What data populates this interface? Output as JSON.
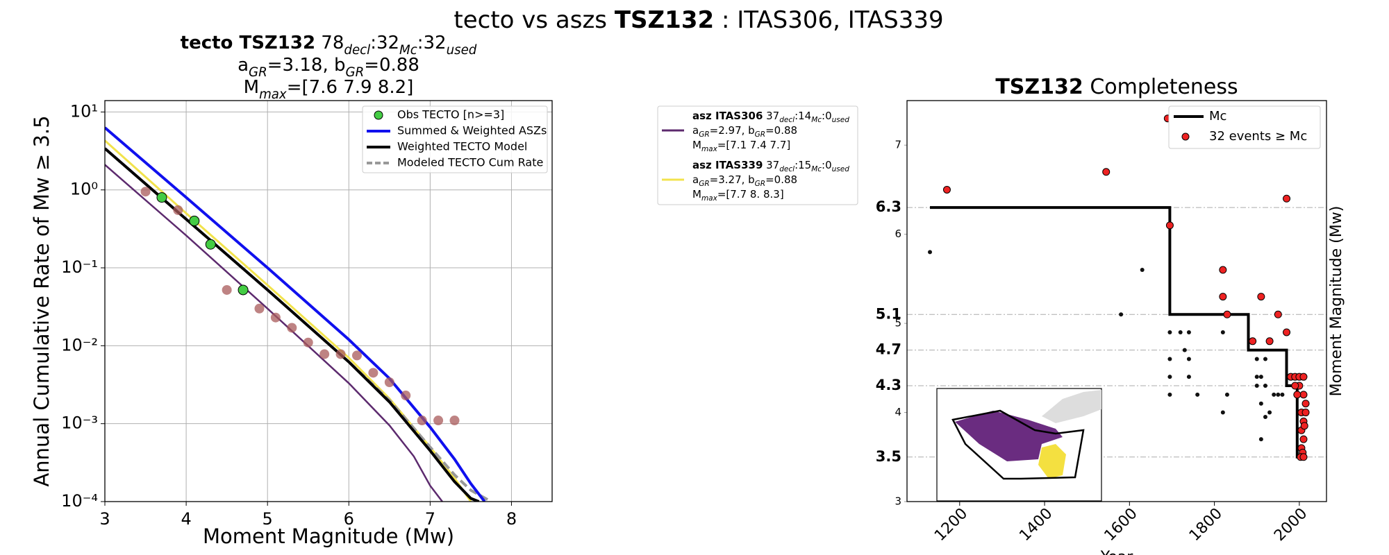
{
  "title": [
    {
      "t": "tecto vs aszs "
    },
    {
      "t": "TSZ132",
      "b": 1
    },
    {
      "t": " : ITAS306, ITAS339"
    }
  ],
  "chart_data": [
    {
      "type": "line",
      "title_lines": [
        [
          {
            "t": "tecto TSZ132",
            "b": 1
          },
          {
            "t": "  78"
          },
          {
            "t": "decl",
            "sub": 1
          },
          {
            "t": ":32"
          },
          {
            "t": "Mc",
            "sub": 1
          },
          {
            "t": ":32"
          },
          {
            "t": "used",
            "sub": 1
          }
        ],
        [
          {
            "t": "a"
          },
          {
            "t": "GR",
            "sub": 1
          },
          {
            "t": "=3.18,  b"
          },
          {
            "t": "GR",
            "sub": 1
          },
          {
            "t": "=0.88"
          }
        ],
        [
          {
            "t": "M"
          },
          {
            "t": "max",
            "sub": 1
          },
          {
            "t": "=[7.6 7.9 8.2]"
          }
        ]
      ],
      "xlabel": "Moment Magnitude (Mw)",
      "ylabel": "Annual Cumulative Rate of Mw  ≥  3.5",
      "xlim": [
        3,
        8.5
      ],
      "xticks": [
        3,
        4,
        5,
        6,
        7,
        8
      ],
      "ylim": [
        0.0001,
        14
      ],
      "log_y": true,
      "yticks": [
        {
          "value": 0.0001,
          "label": "10⁻⁴"
        },
        {
          "value": 0.001,
          "label": "10⁻³"
        },
        {
          "value": 0.01,
          "label": "10⁻²"
        },
        {
          "value": 0.1,
          "label": "10⁻¹"
        },
        {
          "value": 1,
          "label": "10⁰"
        },
        {
          "value": 10,
          "label": "10¹"
        }
      ],
      "grid": true,
      "legend": "upper right",
      "series": [
        {
          "name": "Obs TECTO [n>=3]",
          "marker": "circle",
          "color": "#44cc44",
          "x": [
            3.7,
            4.1,
            4.3,
            4.7
          ],
          "y": [
            0.8,
            0.4,
            0.2,
            0.052
          ]
        },
        {
          "name": "Summed & Weighted ASZs",
          "color": "#1010ee",
          "width": 4,
          "x": [
            3,
            4,
            5,
            6,
            6.5,
            7,
            7.3,
            7.5,
            7.67
          ],
          "y": [
            6.3,
            0.8,
            0.1,
            0.012,
            0.0038,
            0.0009,
            0.00035,
            0.00017,
            0.0001
          ]
        },
        {
          "name": "Weighted TECTO Model",
          "color": "#000000",
          "width": 4,
          "x": [
            3,
            4,
            5,
            6,
            6.5,
            7,
            7.3,
            7.5,
            7.6
          ],
          "y": [
            3.4,
            0.42,
            0.052,
            0.0062,
            0.0019,
            0.00045,
            0.00018,
            0.00011,
            0.0001
          ]
        },
        {
          "name": "Modeled TECTO Cum Rate",
          "color": "#999999",
          "width": 4,
          "dashed": true,
          "x": [
            3,
            4,
            5,
            6,
            6.5,
            7,
            7.3,
            7.5,
            7.75
          ],
          "y": [
            3.4,
            0.42,
            0.052,
            0.0062,
            0.002,
            0.0005,
            0.00022,
            0.00014,
            0.0001
          ]
        },
        {
          "name": "asz ITAS306",
          "color": "#5c2a6e",
          "width": 2.5,
          "x": [
            3,
            4,
            5,
            6,
            6.5,
            6.8,
            7,
            7.15
          ],
          "y": [
            2.1,
            0.26,
            0.03,
            0.0033,
            0.00095,
            0.00038,
            0.00016,
            0.0001
          ],
          "label_lines": [
            [
              {
                "t": " 37"
              },
              {
                "t": "decl",
                "sub": 1
              },
              {
                "t": ":14"
              },
              {
                "t": "Mc",
                "sub": 1
              },
              {
                "t": ":0"
              },
              {
                "t": "used",
                "sub": 1
              }
            ],
            [
              {
                "t": "a"
              },
              {
                "t": "GR",
                "sub": 1
              },
              {
                "t": "=2.97,  b"
              },
              {
                "t": "GR",
                "sub": 1
              },
              {
                "t": "=0.88"
              }
            ],
            [
              {
                "t": "M"
              },
              {
                "t": "max",
                "sub": 1
              },
              {
                "t": "=[7.1 7.4 7.7]"
              }
            ]
          ]
        },
        {
          "name": "asz ITAS339",
          "color": "#f2e34c",
          "width": 3,
          "x": [
            3,
            4,
            5,
            6,
            6.5,
            7,
            7.3,
            7.5
          ],
          "y": [
            4.3,
            0.5,
            0.06,
            0.007,
            0.0021,
            0.0005,
            0.0002,
            0.0001
          ],
          "label_lines": [
            [
              {
                "t": " 37"
              },
              {
                "t": "decl",
                "sub": 1
              },
              {
                "t": ":15"
              },
              {
                "t": "Mc",
                "sub": 1
              },
              {
                "t": ":0"
              },
              {
                "t": "used",
                "sub": 1
              }
            ],
            [
              {
                "t": "a"
              },
              {
                "t": "GR",
                "sub": 1
              },
              {
                "t": "=3.27,  b"
              },
              {
                "t": "GR",
                "sub": 1
              },
              {
                "t": "=0.88"
              }
            ],
            [
              {
                "t": "M"
              },
              {
                "t": "max",
                "sub": 1
              },
              {
                "t": "=[7.7 8.  8.3]"
              }
            ]
          ]
        },
        {
          "marker": "circle",
          "color": "#a85a5a",
          "x": [
            3.5,
            3.7,
            3.9,
            4.1,
            4.3,
            4.5,
            4.7,
            4.9,
            5.1,
            5.3,
            5.5,
            5.7,
            5.9,
            6.1,
            6.3,
            6.5,
            6.7,
            6.9,
            7.1,
            7.3
          ],
          "y": [
            0.95,
            0.8,
            0.55,
            0.4,
            0.2,
            0.052,
            0.052,
            0.03,
            0.023,
            0.017,
            0.011,
            0.0078,
            0.0078,
            0.0075,
            0.0045,
            0.0034,
            0.0023,
            0.0011,
            0.0011,
            0.0011
          ]
        }
      ]
    },
    {
      "type": "scatter",
      "title": [
        {
          "t": "TSZ132",
          "b": 1
        },
        {
          "t": " Completeness"
        }
      ],
      "xlabel": "Year",
      "ylabel": "Moment Magnitude (Mw)",
      "xlim": [
        1076,
        2064
      ],
      "xticks": [
        1200,
        1400,
        1600,
        1800,
        2000
      ],
      "ylim": [
        3,
        7.5
      ],
      "yticks": [
        3,
        4,
        5,
        6,
        7
      ],
      "mc_levels": [
        3.5,
        4.3,
        4.7,
        5.1,
        6.3
      ],
      "legend": "upper right",
      "series": [
        {
          "name": "Mc",
          "color": "#000000",
          "x": [
            1130,
            1695,
            1695,
            1880,
            1880,
            1970,
            1970,
            1995,
            1995,
            2010
          ],
          "y": [
            6.3,
            6.3,
            5.1,
            5.1,
            4.7,
            4.7,
            4.3,
            4.3,
            3.5,
            3.5
          ]
        },
        {
          "name": "32 events ≥ Mc",
          "marker": "circle",
          "color": "#ee2222",
          "x": [
            1170,
            1545,
            1690,
            1695,
            1820,
            1820,
            1830,
            1910,
            1950,
            1890,
            1930,
            1970,
            1970,
            1980,
            1990,
            2000,
            2010,
            2000,
            2010,
            2015,
            2005,
            2010,
            2005,
            2010,
            2005,
            2008,
            2003,
            2010,
            1990,
            1995,
            2012,
            2015
          ],
          "y": [
            6.5,
            6.7,
            7.3,
            6.1,
            5.6,
            5.3,
            5.1,
            5.3,
            5.1,
            4.8,
            4.8,
            4.9,
            6.4,
            4.4,
            4.4,
            4.4,
            4.4,
            4.3,
            4.2,
            4.1,
            4.0,
            3.9,
            3.8,
            3.7,
            3.6,
            3.55,
            3.5,
            3.5,
            4.3,
            4.2,
            3.85,
            4.0
          ]
        },
        {
          "marker": "dot",
          "color": "#111111",
          "x": [
            1130,
            1630,
            1580,
            1695,
            1720,
            1740,
            1695,
            1730,
            1740,
            1695,
            1740,
            1695,
            1760,
            1820,
            1830,
            1820,
            1900,
            1910,
            1900,
            1920,
            1940,
            1910,
            1930,
            1920,
            1910,
            1950,
            1960,
            1920,
            1900
          ],
          "y": [
            5.8,
            5.6,
            5.1,
            4.9,
            4.9,
            4.9,
            4.6,
            4.7,
            4.6,
            4.4,
            4.4,
            4.2,
            4.2,
            4.9,
            4.2,
            4.0,
            4.4,
            4.4,
            4.3,
            4.3,
            4.2,
            4.1,
            4.0,
            3.95,
            3.7,
            4.2,
            4.2,
            4.6,
            4.6
          ]
        }
      ]
    }
  ]
}
